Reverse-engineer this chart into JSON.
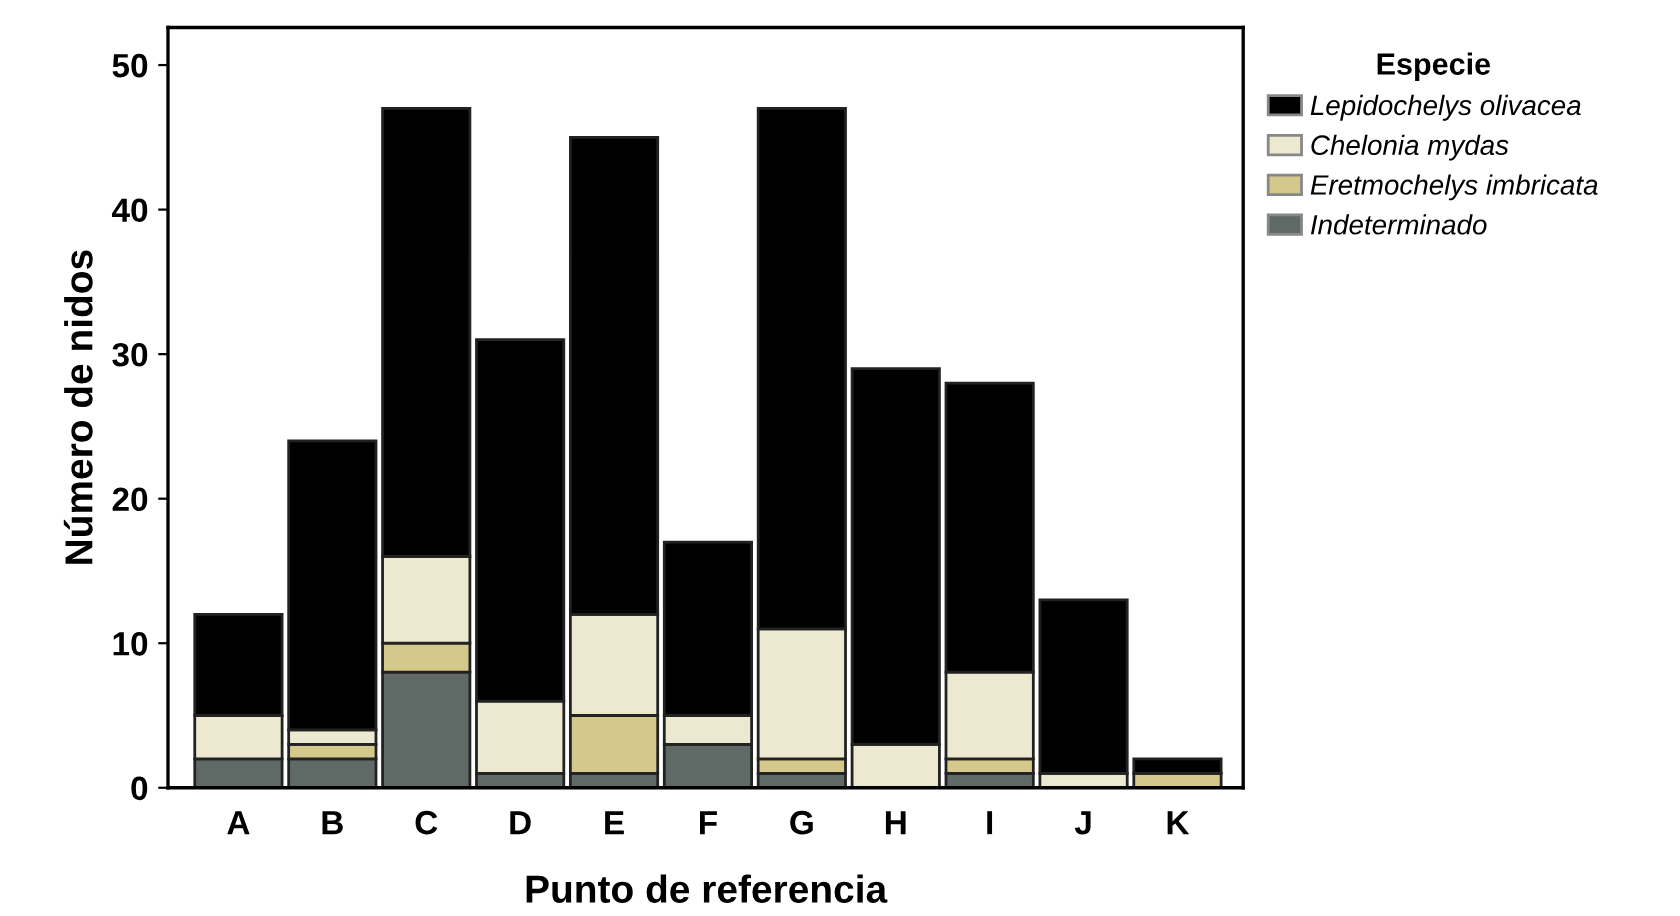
{
  "chart_data": {
    "type": "bar",
    "stacked": true,
    "xlabel": "Punto de referencia",
    "ylabel": "Número de nidos",
    "legend_title": "Especie",
    "legend": "right",
    "categories": [
      "A",
      "B",
      "C",
      "D",
      "E",
      "F",
      "G",
      "H",
      "I",
      "J",
      "K"
    ],
    "series": [
      {
        "name": "Indeterminado",
        "color": "#5f6a66",
        "values": [
          2,
          2,
          8,
          1,
          1,
          3,
          1,
          0,
          1,
          0,
          0
        ]
      },
      {
        "name": "Eretmochelys imbricata",
        "color": "#d4c88a",
        "values": [
          0,
          1,
          2,
          0,
          4,
          0,
          1,
          0,
          1,
          0,
          1
        ]
      },
      {
        "name": "Chelonia mydas",
        "color": "#ede8d0",
        "values": [
          3,
          1,
          6,
          5,
          7,
          2,
          9,
          3,
          6,
          1,
          0
        ]
      },
      {
        "name": "Lepidochelys olivacea",
        "color": "#000000",
        "values": [
          7,
          20,
          31,
          25,
          33,
          12,
          36,
          26,
          20,
          12,
          1
        ]
      }
    ],
    "ylim": [
      0,
      52.6
    ],
    "yticks": [
      0,
      10,
      20,
      30,
      40,
      50
    ],
    "grid": false
  }
}
